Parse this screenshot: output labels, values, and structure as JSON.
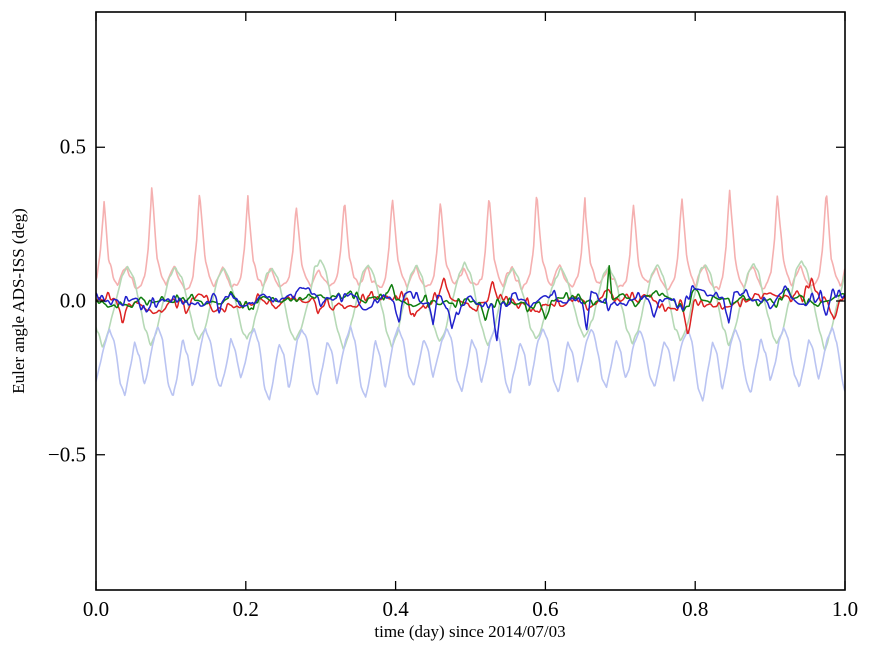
{
  "page": {
    "background": "#ffffff"
  },
  "chart_data": {
    "type": "line",
    "title": "",
    "xlabel": "time (day) since 2014/07/03",
    "ylabel": "Euler angle ADS-ISS (deg)",
    "xlim": [
      0,
      1
    ],
    "ylim": [
      -0.94,
      0.94
    ],
    "xticks": [
      0,
      0.2,
      0.4,
      0.6,
      0.8,
      1.0
    ],
    "xtick_labels": [
      "0.0",
      "0.2",
      "0.4",
      "0.6",
      "0.8",
      "1.0"
    ],
    "yticks": [
      -0.5,
      0,
      0.5
    ],
    "ytick_labels": [
      "−0.5",
      "0.0",
      "0.5"
    ],
    "grid": false,
    "legend": null,
    "axis_color": "#000000",
    "sample_step": 0.0012,
    "orbit_period_day": 0.0643,
    "series": [
      {
        "name": "pale-red",
        "color": "#f5b0b0",
        "linewidth": 1.6,
        "waveform": "cycle",
        "seed": 7,
        "period": 0.0643,
        "phase": 0.01,
        "base": 0.05,
        "amp_jitter": 0.35,
        "noise_step": 0.004,
        "noise_sd": 0.006,
        "cycle_shape": [
          [
            0.0,
            0.33
          ],
          [
            0.05,
            0.24
          ],
          [
            0.11,
            0.13
          ],
          [
            0.2,
            0.08
          ],
          [
            0.3,
            0.05
          ],
          [
            0.4,
            0.09
          ],
          [
            0.48,
            0.11
          ],
          [
            0.57,
            0.07
          ],
          [
            0.68,
            0.045
          ],
          [
            0.78,
            0.05
          ],
          [
            0.86,
            0.08
          ],
          [
            0.93,
            0.17
          ],
          [
            0.97,
            0.27
          ],
          [
            1.0,
            0.33
          ]
        ]
      },
      {
        "name": "pale-green",
        "color": "#b6d9b6",
        "linewidth": 1.6,
        "waveform": "cycle",
        "seed": 21,
        "period": 0.0643,
        "phase": 0.028,
        "base": 0.0,
        "amp_jitter": 0.25,
        "noise_step": 0.004,
        "noise_sd": 0.005,
        "cycle_shape": [
          [
            0.0,
            0.02
          ],
          [
            0.1,
            0.09
          ],
          [
            0.22,
            0.12
          ],
          [
            0.34,
            0.08
          ],
          [
            0.46,
            0.0
          ],
          [
            0.58,
            -0.09
          ],
          [
            0.7,
            -0.14
          ],
          [
            0.82,
            -0.1
          ],
          [
            0.92,
            -0.03
          ],
          [
            1.0,
            0.02
          ]
        ]
      },
      {
        "name": "pale-blue",
        "color": "#bac4f2",
        "linewidth": 1.6,
        "waveform": "cycle",
        "seed": 33,
        "period": 0.0643,
        "phase": 0.018,
        "base": -0.12,
        "amp_jitter": 0.25,
        "noise_step": 0.004,
        "noise_sd": 0.005,
        "cycle_shape": [
          [
            0.0,
            -0.09
          ],
          [
            0.1,
            -0.13
          ],
          [
            0.22,
            -0.26
          ],
          [
            0.32,
            -0.3
          ],
          [
            0.42,
            -0.22
          ],
          [
            0.52,
            -0.13
          ],
          [
            0.62,
            -0.17
          ],
          [
            0.72,
            -0.27
          ],
          [
            0.82,
            -0.2
          ],
          [
            0.9,
            -0.13
          ],
          [
            1.0,
            -0.09
          ]
        ]
      },
      {
        "name": "red",
        "color": "#dd2222",
        "linewidth": 1.5,
        "waveform": "noise",
        "seed": 101,
        "base": 0.0,
        "coarse_step": 0.02,
        "coarse_sd": 0.016,
        "fine_step": 0.004,
        "fine_sd": 0.01,
        "spikes": [
          {
            "x": 0.035,
            "dy": -0.05,
            "w": 0.008
          },
          {
            "x": 0.3,
            "dy": -0.05,
            "w": 0.01
          },
          {
            "x": 0.425,
            "dy": -0.075,
            "w": 0.012
          },
          {
            "x": 0.465,
            "dy": 0.05,
            "w": 0.008
          },
          {
            "x": 0.53,
            "dy": 0.06,
            "w": 0.007
          },
          {
            "x": 0.585,
            "dy": -0.045,
            "w": 0.015
          },
          {
            "x": 0.7,
            "dy": -0.04,
            "w": 0.01
          },
          {
            "x": 0.79,
            "dy": -0.095,
            "w": 0.008
          },
          {
            "x": 0.955,
            "dy": 0.055,
            "w": 0.012
          },
          {
            "x": 0.985,
            "dy": -0.06,
            "w": 0.008
          }
        ]
      },
      {
        "name": "green",
        "color": "#0e7d0e",
        "linewidth": 1.5,
        "waveform": "noise",
        "seed": 202,
        "base": 0.0,
        "coarse_step": 0.02,
        "coarse_sd": 0.012,
        "fine_step": 0.004,
        "fine_sd": 0.008,
        "spikes": [
          {
            "x": 0.21,
            "dy": -0.045,
            "w": 0.008
          },
          {
            "x": 0.395,
            "dy": 0.04,
            "w": 0.006
          },
          {
            "x": 0.52,
            "dy": -0.05,
            "w": 0.007
          },
          {
            "x": 0.6,
            "dy": -0.04,
            "w": 0.008
          },
          {
            "x": 0.685,
            "dy": 0.125,
            "w": 0.004
          },
          {
            "x": 0.8,
            "dy": 0.04,
            "w": 0.008
          },
          {
            "x": 0.92,
            "dy": 0.05,
            "w": 0.01
          }
        ]
      },
      {
        "name": "blue",
        "color": "#2020cc",
        "linewidth": 1.5,
        "waveform": "noise",
        "seed": 303,
        "base": 0.0,
        "coarse_step": 0.02,
        "coarse_sd": 0.016,
        "fine_step": 0.004,
        "fine_sd": 0.01,
        "spikes": [
          {
            "x": 0.065,
            "dy": -0.045,
            "w": 0.01
          },
          {
            "x": 0.165,
            "dy": -0.04,
            "w": 0.008
          },
          {
            "x": 0.405,
            "dy": -0.08,
            "w": 0.007
          },
          {
            "x": 0.45,
            "dy": -0.085,
            "w": 0.006
          },
          {
            "x": 0.475,
            "dy": -0.07,
            "w": 0.006
          },
          {
            "x": 0.535,
            "dy": -0.115,
            "w": 0.006
          },
          {
            "x": 0.655,
            "dy": -0.125,
            "w": 0.006
          },
          {
            "x": 0.745,
            "dy": -0.05,
            "w": 0.008
          },
          {
            "x": 0.845,
            "dy": -0.09,
            "w": 0.007
          },
          {
            "x": 0.975,
            "dy": -0.07,
            "w": 0.008
          }
        ]
      }
    ]
  }
}
